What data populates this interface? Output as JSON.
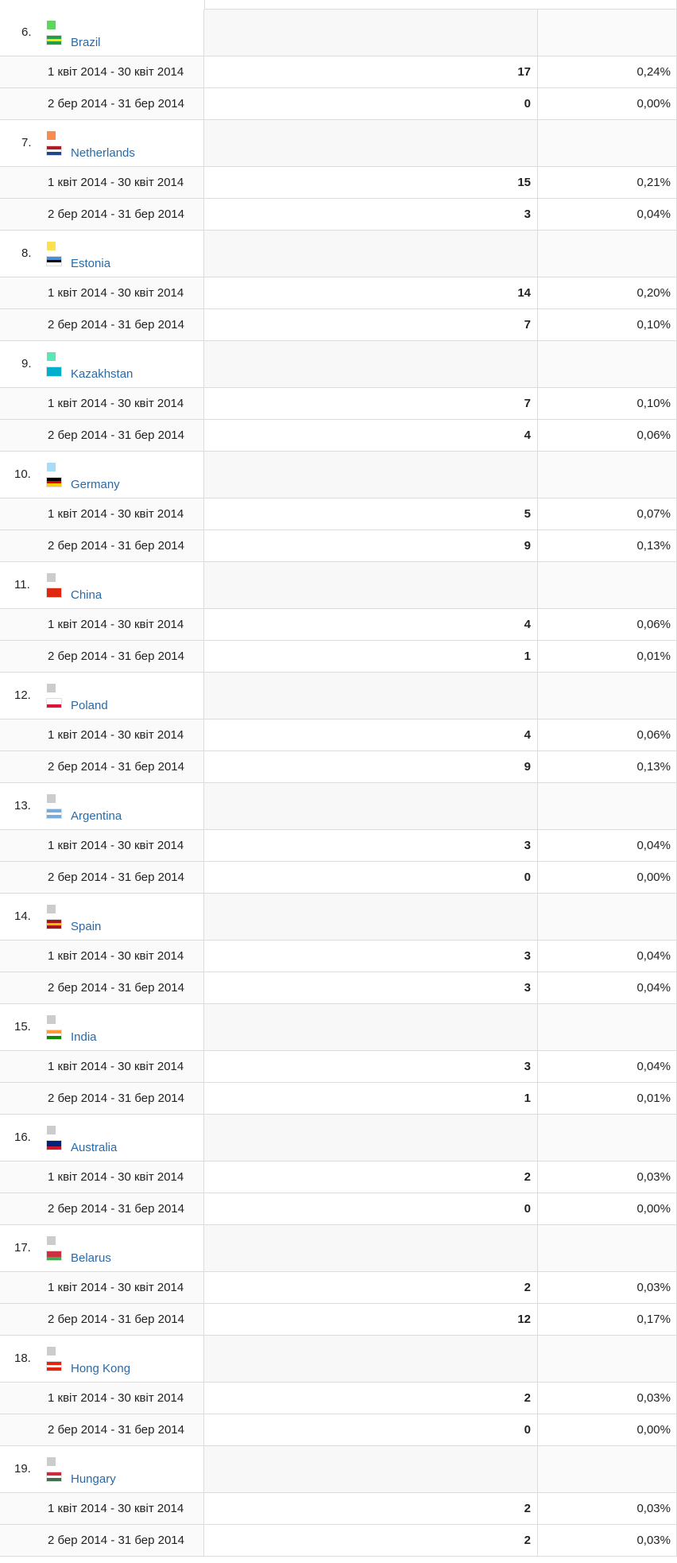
{
  "table": {
    "groups": [
      {
        "rank": "6.",
        "color": "#5cd65c",
        "country": "Brazil",
        "rows": [
          {
            "period": "1 квіт 2014 - 30 квіт 2014",
            "value": 17,
            "percent": "0,24%"
          },
          {
            "period": "2 бер 2014 - 31 бер 2014",
            "value": 0,
            "percent": "0,00%"
          }
        ]
      },
      {
        "rank": "7.",
        "color": "#f98c4b",
        "country": "Netherlands",
        "rows": [
          {
            "period": "1 квіт 2014 - 30 квіт 2014",
            "value": 15,
            "percent": "0,21%"
          },
          {
            "period": "2 бер 2014 - 31 бер 2014",
            "value": 3,
            "percent": "0,04%"
          }
        ]
      },
      {
        "rank": "8.",
        "color": "#f9e24b",
        "country": "Estonia",
        "rows": [
          {
            "period": "1 квіт 2014 - 30 квіт 2014",
            "value": 14,
            "percent": "0,20%"
          },
          {
            "period": "2 бер 2014 - 31 бер 2014",
            "value": 7,
            "percent": "0,10%"
          }
        ]
      },
      {
        "rank": "9.",
        "color": "#5ce8b6",
        "country": "Kazakhstan",
        "rows": [
          {
            "period": "1 квіт 2014 - 30 квіт 2014",
            "value": 7,
            "percent": "0,10%"
          },
          {
            "period": "2 бер 2014 - 31 бер 2014",
            "value": 4,
            "percent": "0,06%"
          }
        ]
      },
      {
        "rank": "10.",
        "color": "#a8dbf8",
        "country": "Germany",
        "rows": [
          {
            "period": "1 квіт 2014 - 30 квіт 2014",
            "value": 5,
            "percent": "0,07%"
          },
          {
            "period": "2 бер 2014 - 31 бер 2014",
            "value": 9,
            "percent": "0,13%"
          }
        ]
      },
      {
        "rank": "11.",
        "color": "#cccccc",
        "country": "China",
        "rows": [
          {
            "period": "1 квіт 2014 - 30 квіт 2014",
            "value": 4,
            "percent": "0,06%"
          },
          {
            "period": "2 бер 2014 - 31 бер 2014",
            "value": 1,
            "percent": "0,01%"
          }
        ]
      },
      {
        "rank": "12.",
        "color": "#cccccc",
        "country": "Poland",
        "rows": [
          {
            "period": "1 квіт 2014 - 30 квіт 2014",
            "value": 4,
            "percent": "0,06%"
          },
          {
            "period": "2 бер 2014 - 31 бер 2014",
            "value": 9,
            "percent": "0,13%"
          }
        ]
      },
      {
        "rank": "13.",
        "color": "#cccccc",
        "country": "Argentina",
        "rows": [
          {
            "period": "1 квіт 2014 - 30 квіт 2014",
            "value": 3,
            "percent": "0,04%"
          },
          {
            "period": "2 бер 2014 - 31 бер 2014",
            "value": 0,
            "percent": "0,00%"
          }
        ]
      },
      {
        "rank": "14.",
        "color": "#cccccc",
        "country": "Spain",
        "rows": [
          {
            "period": "1 квіт 2014 - 30 квіт 2014",
            "value": 3,
            "percent": "0,04%"
          },
          {
            "period": "2 бер 2014 - 31 бер 2014",
            "value": 3,
            "percent": "0,04%"
          }
        ]
      },
      {
        "rank": "15.",
        "color": "#cccccc",
        "country": "India",
        "rows": [
          {
            "period": "1 квіт 2014 - 30 квіт 2014",
            "value": 3,
            "percent": "0,04%"
          },
          {
            "period": "2 бер 2014 - 31 бер 2014",
            "value": 1,
            "percent": "0,01%"
          }
        ]
      },
      {
        "rank": "16.",
        "color": "#cccccc",
        "country": "Australia",
        "rows": [
          {
            "period": "1 квіт 2014 - 30 квіт 2014",
            "value": 2,
            "percent": "0,03%"
          },
          {
            "period": "2 бер 2014 - 31 бер 2014",
            "value": 0,
            "percent": "0,00%"
          }
        ]
      },
      {
        "rank": "17.",
        "color": "#cccccc",
        "country": "Belarus",
        "rows": [
          {
            "period": "1 квіт 2014 - 30 квіт 2014",
            "value": 2,
            "percent": "0,03%"
          },
          {
            "period": "2 бер 2014 - 31 бер 2014",
            "value": 12,
            "percent": "0,17%"
          }
        ]
      },
      {
        "rank": "18.",
        "color": "#cccccc",
        "country": "Hong Kong",
        "rows": [
          {
            "period": "1 квіт 2014 - 30 квіт 2014",
            "value": 2,
            "percent": "0,03%"
          },
          {
            "period": "2 бер 2014 - 31 бер 2014",
            "value": 0,
            "percent": "0,00%"
          }
        ]
      },
      {
        "rank": "19.",
        "color": "#cccccc",
        "country": "Hungary",
        "rows": [
          {
            "period": "1 квіт 2014 - 30 квіт 2014",
            "value": 2,
            "percent": "0,03%"
          },
          {
            "period": "2 бер 2014 - 31 бер 2014",
            "value": 2,
            "percent": "0,03%"
          }
        ]
      }
    ]
  }
}
